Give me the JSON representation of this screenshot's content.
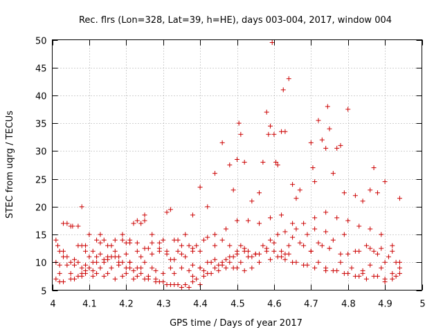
{
  "chart_data": {
    "type": "scatter",
    "title": "Rec. flrs (Lon=328, Lat=39, h=HE), days 003-004, 2017, window 004",
    "xlabel": "GPS time / Days of year 2017",
    "ylabel": "STEC from uqrg / TECUs",
    "xlim": [
      4,
      5
    ],
    "ylim": [
      5,
      50
    ],
    "xticks": [
      4,
      4.1,
      4.2,
      4.3,
      4.4,
      4.5,
      4.6,
      4.7,
      4.8,
      4.9,
      5
    ],
    "yticks": [
      5,
      10,
      15,
      20,
      25,
      30,
      35,
      40,
      45,
      50
    ],
    "grid": true,
    "marker": "+",
    "color": "#cc0000",
    "series": [
      {
        "name": "STEC",
        "x": [
          4.01,
          4.015,
          4.03,
          4.04,
          4.055,
          4.07,
          4.08,
          4.09,
          4.1,
          4.12,
          4.13,
          4.14,
          4.16,
          4.17,
          4.19,
          4.2,
          4.21,
          4.22,
          4.23,
          4.24,
          4.25,
          4.27,
          4.29,
          4.3,
          4.31,
          4.33,
          4.34,
          4.35,
          4.36,
          4.37,
          4.38,
          4.39,
          4.4,
          4.42,
          4.44,
          4.46,
          4.48,
          4.5,
          4.52,
          4.55,
          4.58,
          4.6,
          4.63,
          4.65,
          4.68,
          4.7,
          4.72,
          4.75,
          4.78,
          4.8,
          4.83,
          4.86,
          4.88,
          4.9,
          4.92,
          4.94,
          4.01,
          4.02,
          4.03,
          4.05,
          4.06,
          4.08,
          4.09,
          4.11,
          4.12,
          4.14,
          4.15,
          4.17,
          4.18,
          4.2,
          4.21,
          4.23,
          4.24,
          4.26,
          4.27,
          4.29,
          4.31,
          4.32,
          4.34,
          4.36,
          4.38,
          4.4,
          4.41,
          4.43,
          4.45,
          4.47,
          4.49,
          4.51,
          4.53,
          4.56,
          4.59,
          4.61,
          4.63,
          4.66,
          4.69,
          4.71,
          4.74,
          4.76,
          4.79,
          4.82,
          4.85,
          4.87,
          4.89,
          4.91,
          4.93,
          4.01,
          4.02,
          4.04,
          4.05,
          4.07,
          4.08,
          4.1,
          4.11,
          4.13,
          4.14,
          4.16,
          4.18,
          4.19,
          4.21,
          4.22,
          4.24,
          4.25,
          4.27,
          4.28,
          4.3,
          4.32,
          4.33,
          4.35,
          4.37,
          4.38,
          4.4,
          4.42,
          4.44,
          4.46,
          4.48,
          4.5,
          4.52,
          4.54,
          4.57,
          4.6,
          4.62,
          4.64,
          4.67,
          4.7,
          4.73,
          4.75,
          4.78,
          4.81,
          4.84,
          4.86,
          4.89,
          4.92,
          4.94,
          4.02,
          4.03,
          4.05,
          4.06,
          4.08,
          4.09,
          4.11,
          4.12,
          4.14,
          4.15,
          4.17,
          4.19,
          4.2,
          4.22,
          4.23,
          4.25,
          4.26,
          4.28,
          4.29,
          4.31,
          4.33,
          4.34,
          4.36,
          4.38,
          4.39,
          4.41,
          4.43,
          4.45,
          4.47,
          4.49,
          4.51,
          4.53,
          4.55,
          4.58,
          4.61,
          4.63,
          4.65,
          4.68,
          4.71,
          4.74,
          4.77,
          4.8,
          4.83,
          4.85,
          4.88,
          4.9,
          4.93,
          4.02,
          4.04,
          4.06,
          4.07,
          4.09,
          4.1,
          4.12,
          4.13,
          4.15,
          4.16,
          4.18,
          4.2,
          4.21,
          4.23,
          4.24,
          4.26,
          4.28,
          4.3,
          4.32,
          4.35,
          4.37,
          4.4,
          4.42,
          4.44,
          4.46,
          4.48,
          4.5,
          4.52,
          4.54,
          4.56,
          4.59,
          4.62,
          4.64,
          4.66,
          4.69,
          4.72,
          4.74,
          4.76,
          4.79,
          4.82,
          4.84,
          4.87,
          4.9,
          4.92,
          4.94,
          4.03,
          4.05,
          4.07,
          4.09,
          4.11,
          4.13,
          4.15,
          4.17,
          4.19,
          4.21,
          4.23,
          4.25,
          4.27,
          4.29,
          4.31,
          4.33,
          4.35,
          4.38,
          4.41,
          4.44,
          4.47,
          4.5,
          4.53,
          4.56,
          4.59,
          4.62,
          4.65,
          4.68,
          4.71,
          4.74,
          4.77,
          4.8,
          4.83,
          4.86,
          4.89,
          4.92,
          4.08,
          4.25,
          4.32,
          4.38,
          4.4,
          4.42,
          4.44,
          4.46,
          4.48,
          4.49,
          4.5,
          4.505,
          4.51,
          4.52,
          4.54,
          4.56,
          4.57,
          4.58,
          4.585,
          4.59,
          4.595,
          4.6,
          4.605,
          4.61,
          4.62,
          4.625,
          4.63,
          4.64,
          4.65,
          4.66,
          4.67,
          4.7,
          4.705,
          4.71,
          4.72,
          4.73,
          4.74,
          4.745,
          4.75,
          4.76,
          4.77,
          4.78,
          4.79,
          4.8,
          4.82,
          4.84,
          4.86,
          4.87,
          4.88,
          4.9,
          4.94
        ],
        "y": [
          14,
          13,
          11,
          17,
          16.5,
          13,
          13,
          12,
          15,
          14,
          15,
          14,
          13,
          14,
          15,
          13.5,
          14,
          17,
          17.5,
          17,
          18.5,
          15,
          13.5,
          14,
          19,
          14,
          14,
          13,
          15,
          13,
          12,
          13,
          12,
          14.5,
          13,
          14,
          13,
          12,
          12.5,
          11.5,
          12.5,
          13.5,
          11.5,
          14.5,
          13,
          12,
          13.5,
          12.5,
          11.5,
          11.5,
          12,
          12.5,
          11.5,
          10,
          12,
          10,
          10,
          9.5,
          12,
          10,
          9.5,
          9,
          8.5,
          10,
          11,
          10.5,
          11,
          12,
          11,
          11.5,
          10,
          12,
          11,
          12.5,
          11.5,
          12.5,
          11.5,
          10.5,
          12,
          11,
          9.5,
          9,
          8.5,
          10,
          9.5,
          10.5,
          11,
          13,
          12,
          11.5,
          14,
          15,
          15.5,
          16,
          15,
          16,
          15.5,
          14,
          15,
          12,
          13,
          12,
          12.5,
          11,
          10,
          7,
          8,
          9.5,
          8,
          7.5,
          8,
          9,
          8.5,
          9,
          10,
          9,
          9.5,
          10,
          9,
          8.5,
          9,
          10,
          9,
          8.5,
          8,
          9,
          8,
          9,
          8.5,
          7.5,
          9,
          10,
          10.5,
          10,
          11,
          11.5,
          12,
          11,
          13,
          12,
          11,
          13,
          13.5,
          12,
          13,
          12.5,
          10,
          9,
          8.5,
          9.5,
          9,
          8,
          9,
          6.5,
          6.5,
          7,
          7,
          7.5,
          8,
          7.5,
          8,
          7.5,
          8,
          7,
          7.5,
          8,
          7,
          7.5,
          7,
          7,
          6.5,
          6.5,
          6,
          6,
          6,
          6,
          6.5,
          7,
          7.5,
          8,
          8.5,
          9,
          9,
          10,
          11,
          11.5,
          12,
          11,
          10.5,
          10,
          9.5,
          9,
          8.5,
          8.5,
          8,
          7.5,
          7,
          7.5,
          7,
          7.5,
          12,
          11,
          10.5,
          10,
          9.5,
          11,
          10,
          11.5,
          10.5,
          11,
          10,
          9,
          10,
          9,
          8,
          7.5,
          7,
          6.5,
          6,
          5.5,
          5.5,
          6,
          8,
          9,
          9.5,
          10,
          9,
          8.5,
          9,
          10,
          10.5,
          12,
          11.5,
          10,
          9.5,
          10,
          9,
          8.5,
          8,
          7.5,
          8,
          7.5,
          6.5,
          7,
          8,
          17,
          16.5,
          16.5,
          13,
          12,
          13.5,
          13,
          11,
          14,
          13.5,
          13.5,
          12.5,
          13.5,
          12,
          12,
          10.5,
          11.5,
          12.5,
          14,
          15,
          16,
          17.5,
          17.5,
          17,
          18,
          18.5,
          17,
          17,
          18,
          19,
          18,
          17.5,
          16.5,
          16,
          15,
          13,
          20,
          17.5,
          19.5,
          18.5,
          23.5,
          20,
          26,
          31.5,
          27.5,
          23,
          28.5,
          35,
          33,
          28,
          21,
          22.5,
          28,
          37,
          33,
          34.5,
          49.5,
          33,
          28,
          27.5,
          33.5,
          41,
          33.5,
          43,
          24,
          21.5,
          23,
          31.5,
          27,
          24.5,
          35.5,
          32,
          30.5,
          38,
          34,
          26,
          30.5,
          31,
          22.5,
          37.5,
          22,
          21,
          23,
          27,
          22.5,
          24.5,
          21.5
        ]
      }
    ]
  }
}
